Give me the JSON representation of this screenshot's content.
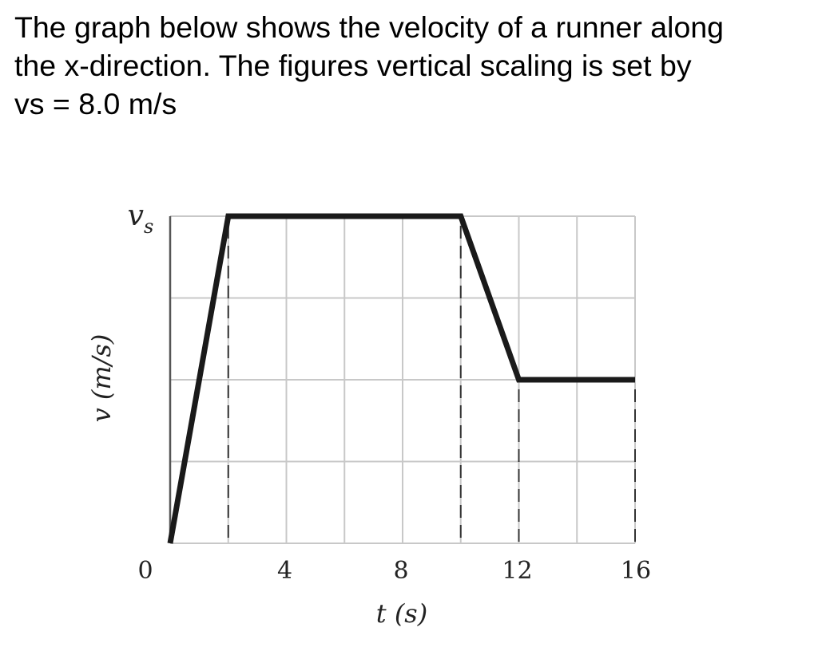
{
  "question": {
    "lines": [
      "The graph below shows the velocity of a runner along",
      "the x-direction. The figures vertical scaling is set by",
      "vs = 8.0 m/s"
    ]
  },
  "chart_data": {
    "type": "line",
    "xlabel": "t (s)",
    "ylabel": "v (m/s)",
    "xlim": [
      0,
      16
    ],
    "ylim": [
      0,
      8.0
    ],
    "x_ticks": [
      0,
      4,
      8,
      12,
      16
    ],
    "x_tick_labels": [
      "0",
      "4",
      "8",
      "12",
      "16"
    ],
    "y_tick_labels": [
      {
        "value": 8.0,
        "label": "vs"
      },
      {
        "value": 0,
        "label": "0"
      }
    ],
    "grid": true,
    "x_grid_step": 2,
    "y_grid_step": 2,
    "series": [
      {
        "points": [
          {
            "t": 0,
            "v": 0
          },
          {
            "t": 2,
            "v": 8.0
          },
          {
            "t": 10,
            "v": 8.0
          },
          {
            "t": 12,
            "v": 4.0
          },
          {
            "t": 16,
            "v": 4.0
          }
        ]
      }
    ],
    "dashed_guides_at_t": [
      2,
      10,
      12,
      16
    ]
  }
}
